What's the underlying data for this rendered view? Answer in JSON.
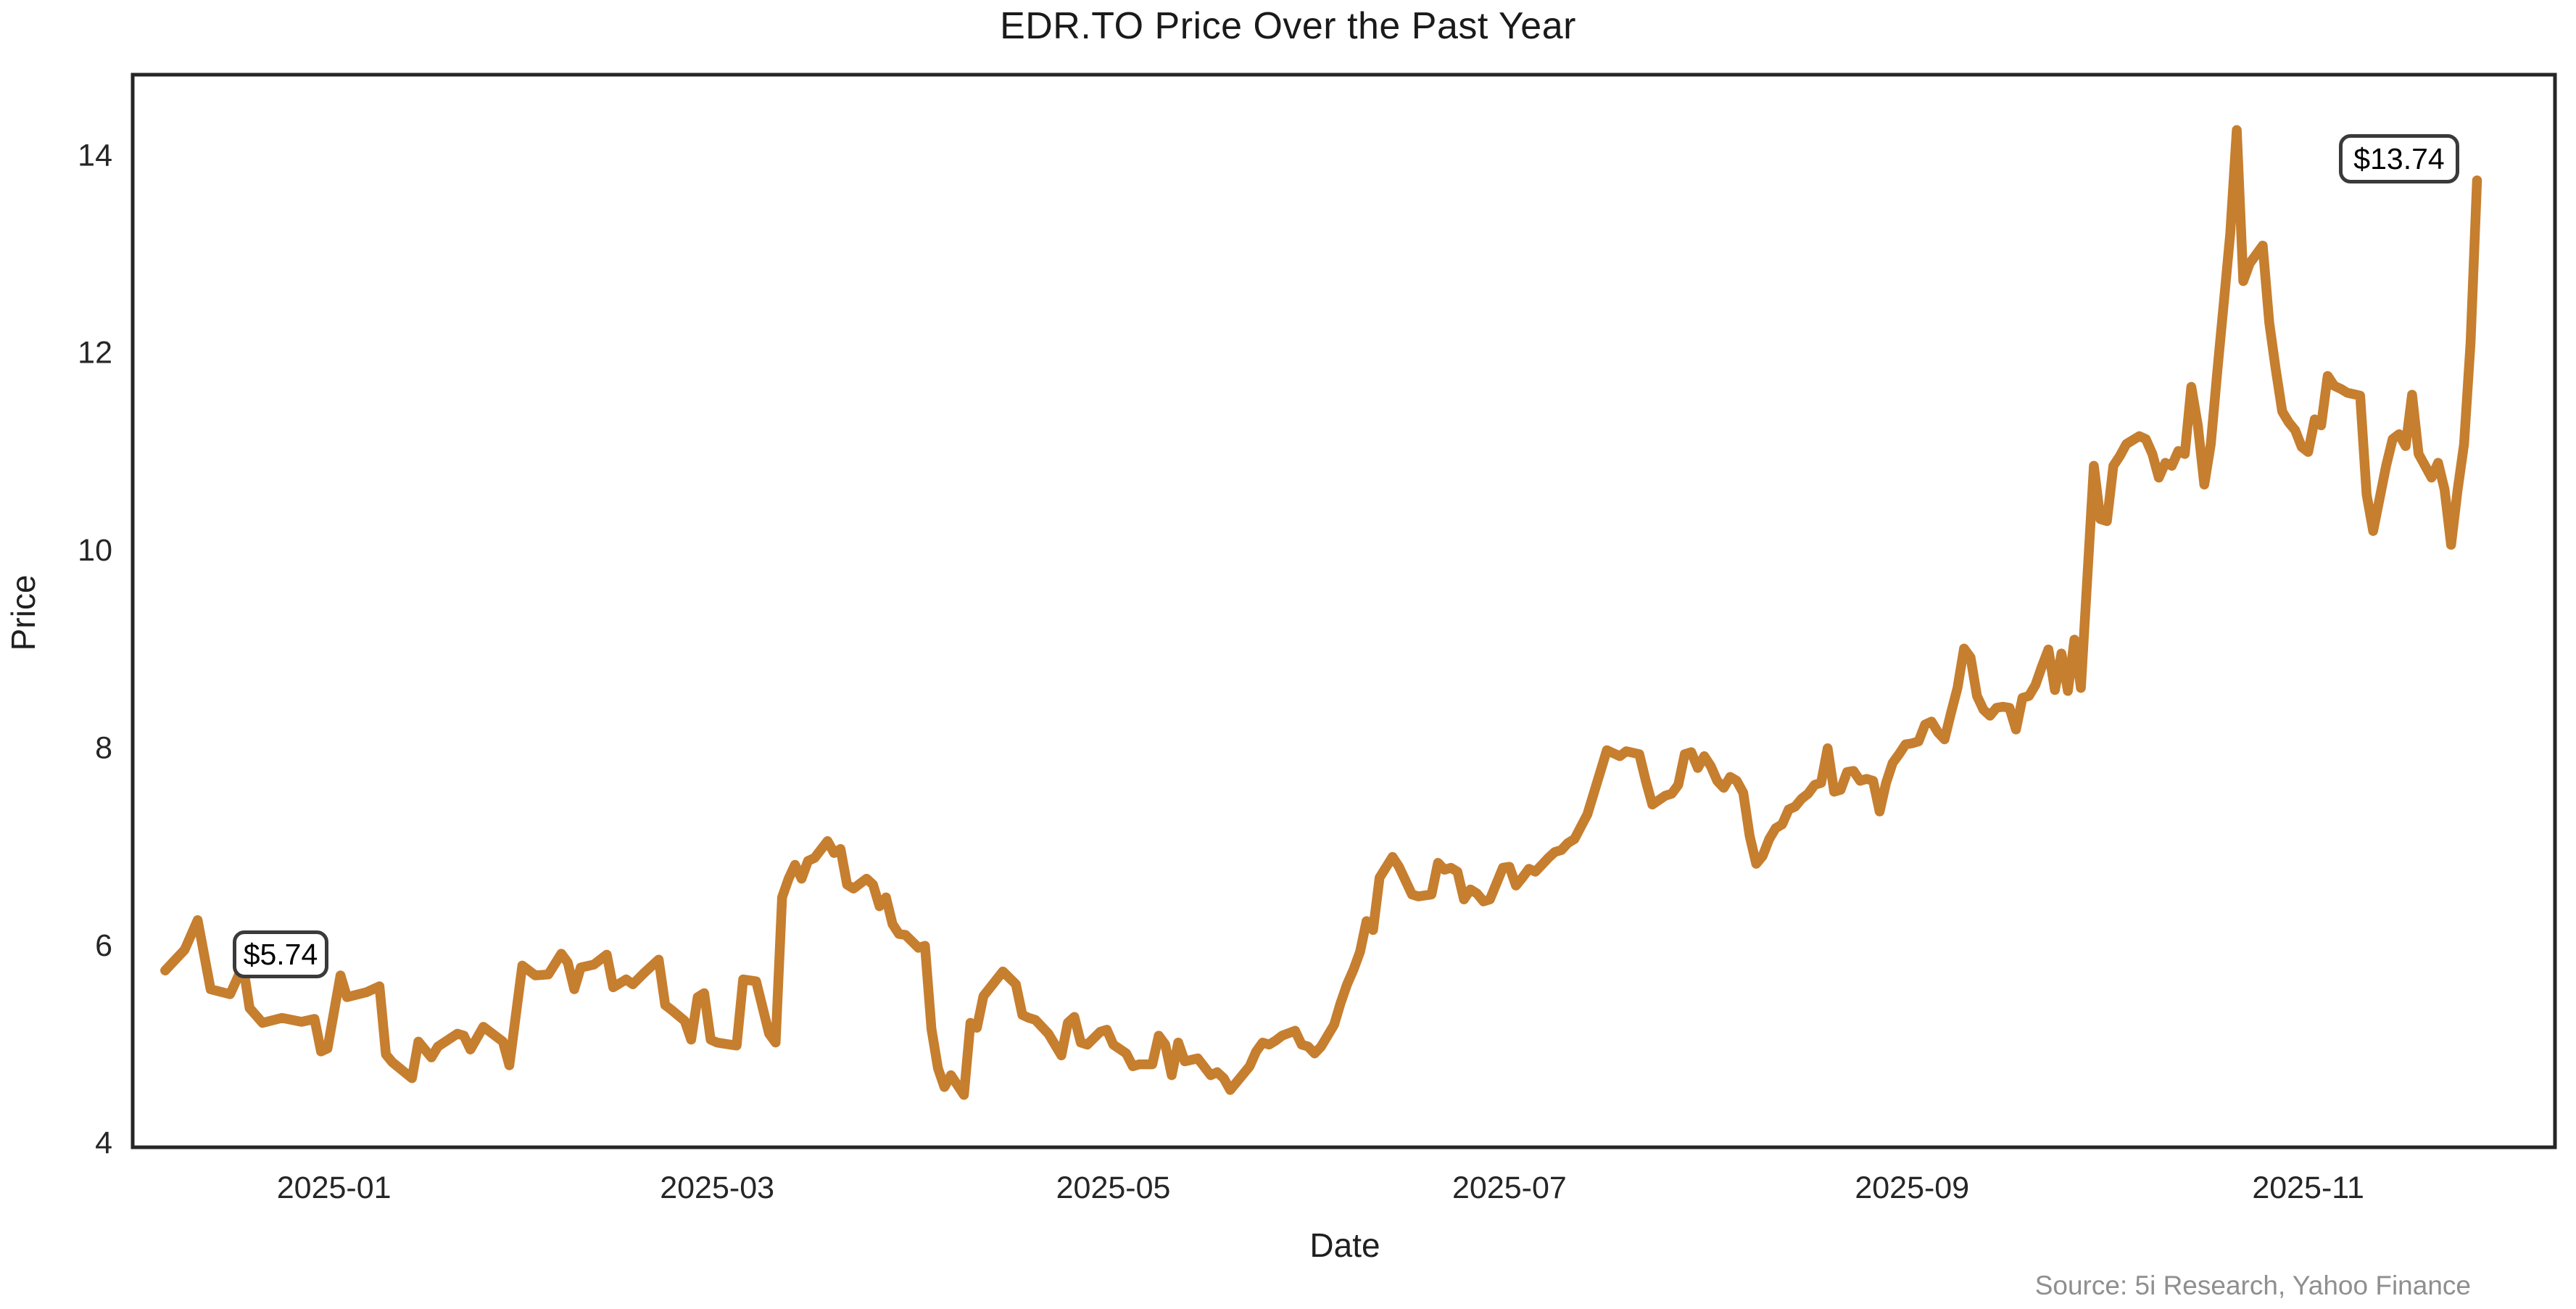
{
  "chart_data": {
    "type": "line",
    "title": "EDR.TO Price Over the Past Year",
    "xlabel": "Date",
    "ylabel": "Price",
    "legend": "none",
    "grid": false,
    "line_color": "#c67e2f",
    "axis_color": "#262626",
    "series_name": "EDR.TO",
    "xlim": [
      "2024-12-01",
      "2025-12-09"
    ],
    "ylim": [
      3.95,
      14.81
    ],
    "yticks": [
      4,
      6,
      8,
      10,
      12,
      14
    ],
    "xticks": [
      {
        "date": "2025-01-01",
        "label": "2025-01"
      },
      {
        "date": "2025-03-01",
        "label": "2025-03"
      },
      {
        "date": "2025-05-01",
        "label": "2025-05"
      },
      {
        "date": "2025-07-01",
        "label": "2025-07"
      },
      {
        "date": "2025-09-01",
        "label": "2025-09"
      },
      {
        "date": "2025-11-01",
        "label": "2025-11"
      }
    ],
    "dates": [
      "2024-12-06",
      "2024-12-09",
      "2024-12-11",
      "2024-12-13",
      "2024-12-16",
      "2024-12-18",
      "2024-12-19",
      "2024-12-21",
      "2024-12-24",
      "2024-12-27",
      "2024-12-29",
      "2024-12-30",
      "2024-12-31",
      "2025-01-02",
      "2025-01-03",
      "2025-01-06",
      "2025-01-08",
      "2025-01-09",
      "2025-01-10",
      "2025-01-13",
      "2025-01-14",
      "2025-01-16",
      "2025-01-17",
      "2025-01-20",
      "2025-01-21",
      "2025-01-22",
      "2025-01-24",
      "2025-01-27",
      "2025-01-28",
      "2025-01-30",
      "2025-01-31",
      "2025-02-01",
      "2025-02-03",
      "2025-02-05",
      "2025-02-06",
      "2025-02-07",
      "2025-02-08",
      "2025-02-10",
      "2025-02-12",
      "2025-02-13",
      "2025-02-15",
      "2025-02-16",
      "2025-02-18",
      "2025-02-20",
      "2025-02-21",
      "2025-02-22",
      "2025-02-24",
      "2025-02-25",
      "2025-02-26",
      "2025-02-27",
      "2025-02-28",
      "2025-03-01",
      "2025-03-03",
      "2025-03-04",
      "2025-03-05",
      "2025-03-07",
      "2025-03-09",
      "2025-03-10",
      "2025-03-11",
      "2025-03-12",
      "2025-03-13",
      "2025-03-14",
      "2025-03-15",
      "2025-03-16",
      "2025-03-18",
      "2025-03-19",
      "2025-03-20",
      "2025-03-21",
      "2025-03-22",
      "2025-03-24",
      "2025-03-25",
      "2025-03-26",
      "2025-03-27",
      "2025-03-28",
      "2025-03-29",
      "2025-03-30",
      "2025-04-01",
      "2025-04-02",
      "2025-04-03",
      "2025-04-04",
      "2025-04-05",
      "2025-04-06",
      "2025-04-08",
      "2025-04-09",
      "2025-04-10",
      "2025-04-11",
      "2025-04-14",
      "2025-04-16",
      "2025-04-17",
      "2025-04-18",
      "2025-04-19",
      "2025-04-21",
      "2025-04-23",
      "2025-04-24",
      "2025-04-25",
      "2025-04-26",
      "2025-04-27",
      "2025-04-29",
      "2025-04-30",
      "2025-05-01",
      "2025-05-03",
      "2025-05-04",
      "2025-05-05",
      "2025-05-07",
      "2025-05-08",
      "2025-05-09",
      "2025-05-10",
      "2025-05-11",
      "2025-05-12",
      "2025-05-14",
      "2025-05-16",
      "2025-05-17",
      "2025-05-18",
      "2025-05-19",
      "2025-05-22",
      "2025-05-23",
      "2025-05-24",
      "2025-05-25",
      "2025-05-26",
      "2025-05-27",
      "2025-05-29",
      "2025-05-30",
      "2025-05-31",
      "2025-06-01",
      "2025-06-02",
      "2025-06-04",
      "2025-06-05",
      "2025-06-06",
      "2025-06-07",
      "2025-06-08",
      "2025-06-09",
      "2025-06-10",
      "2025-06-11",
      "2025-06-13",
      "2025-06-14",
      "2025-06-16",
      "2025-06-17",
      "2025-06-18",
      "2025-06-19",
      "2025-06-20",
      "2025-06-21",
      "2025-06-22",
      "2025-06-23",
      "2025-06-24",
      "2025-06-25",
      "2025-06-26",
      "2025-06-27",
      "2025-06-28",
      "2025-06-30",
      "2025-07-01",
      "2025-07-02",
      "2025-07-03",
      "2025-07-04",
      "2025-07-05",
      "2025-07-06",
      "2025-07-07",
      "2025-07-08",
      "2025-07-09",
      "2025-07-10",
      "2025-07-11",
      "2025-07-13",
      "2025-07-16",
      "2025-07-18",
      "2025-07-19",
      "2025-07-21",
      "2025-07-22",
      "2025-07-23",
      "2025-07-25",
      "2025-07-26",
      "2025-07-27",
      "2025-07-28",
      "2025-07-29",
      "2025-07-30",
      "2025-07-31",
      "2025-08-01",
      "2025-08-02",
      "2025-08-03",
      "2025-08-04",
      "2025-08-05",
      "2025-08-06",
      "2025-08-07",
      "2025-08-08",
      "2025-08-09",
      "2025-08-10",
      "2025-08-11",
      "2025-08-12",
      "2025-08-13",
      "2025-08-14",
      "2025-08-15",
      "2025-08-16",
      "2025-08-17",
      "2025-08-18",
      "2025-08-19",
      "2025-08-20",
      "2025-08-21",
      "2025-08-22",
      "2025-08-23",
      "2025-08-24",
      "2025-08-25",
      "2025-08-26",
      "2025-08-27",
      "2025-08-28",
      "2025-08-29",
      "2025-08-30",
      "2025-08-31",
      "2025-09-01",
      "2025-09-02",
      "2025-09-03",
      "2025-09-04",
      "2025-09-05",
      "2025-09-06",
      "2025-09-07",
      "2025-09-08",
      "2025-09-09",
      "2025-09-10",
      "2025-09-11",
      "2025-09-12",
      "2025-09-13",
      "2025-09-14",
      "2025-09-15",
      "2025-09-16",
      "2025-09-17",
      "2025-09-18",
      "2025-09-19",
      "2025-09-20",
      "2025-09-21",
      "2025-09-22",
      "2025-09-23",
      "2025-09-24",
      "2025-09-25",
      "2025-09-26",
      "2025-09-27",
      "2025-09-29",
      "2025-09-30",
      "2025-10-01",
      "2025-10-02",
      "2025-10-03",
      "2025-10-04",
      "2025-10-06",
      "2025-10-07",
      "2025-10-08",
      "2025-10-09",
      "2025-10-10",
      "2025-10-11",
      "2025-10-12",
      "2025-10-13",
      "2025-10-14",
      "2025-10-15",
      "2025-10-16",
      "2025-10-17",
      "2025-10-18",
      "2025-10-19",
      "2025-10-20",
      "2025-10-21",
      "2025-10-22",
      "2025-10-23",
      "2025-10-25",
      "2025-10-26",
      "2025-10-27",
      "2025-10-28",
      "2025-10-29",
      "2025-10-30",
      "2025-10-31",
      "2025-11-01",
      "2025-11-02",
      "2025-11-03",
      "2025-11-04",
      "2025-11-05",
      "2025-11-06",
      "2025-11-07",
      "2025-11-09",
      "2025-11-10",
      "2025-11-11",
      "2025-11-13",
      "2025-11-14",
      "2025-11-15",
      "2025-11-16",
      "2025-11-17",
      "2025-11-18",
      "2025-11-19",
      "2025-11-20",
      "2025-11-21",
      "2025-11-22",
      "2025-11-23",
      "2025-11-24",
      "2025-11-25",
      "2025-11-26",
      "2025-11-27"
    ],
    "prices": [
      5.74,
      5.95,
      6.25,
      5.55,
      5.5,
      5.79,
      5.36,
      5.21,
      5.26,
      5.22,
      5.25,
      4.92,
      4.95,
      5.69,
      5.47,
      5.52,
      5.58,
      4.89,
      4.81,
      4.65,
      5.02,
      4.86,
      4.97,
      5.1,
      5.08,
      4.94,
      5.17,
      5.02,
      4.78,
      5.79,
      5.74,
      5.69,
      5.7,
      5.91,
      5.82,
      5.55,
      5.77,
      5.8,
      5.9,
      5.57,
      5.65,
      5.6,
      5.73,
      5.85,
      5.39,
      5.34,
      5.23,
      5.04,
      5.47,
      5.51,
      5.04,
      5.01,
      4.99,
      4.98,
      5.65,
      5.63,
      5.1,
      5.01,
      6.48,
      6.67,
      6.81,
      6.67,
      6.85,
      6.88,
      7.05,
      6.93,
      6.97,
      6.61,
      6.57,
      6.67,
      6.61,
      6.39,
      6.48,
      6.21,
      6.11,
      6.1,
      5.97,
      5.99,
      5.15,
      4.75,
      4.56,
      4.68,
      4.48,
      5.21,
      5.16,
      5.48,
      5.73,
      5.6,
      5.29,
      5.26,
      5.24,
      5.1,
      4.88,
      5.21,
      5.27,
      5.01,
      4.99,
      5.12,
      5.14,
      4.99,
      4.9,
      4.77,
      4.79,
      4.79,
      5.08,
      4.99,
      4.68,
      5.01,
      4.82,
      4.85,
      4.68,
      4.71,
      4.65,
      4.53,
      4.77,
      4.92,
      5.01,
      4.99,
      5.03,
      5.08,
      5.13,
      4.99,
      4.97,
      4.9,
      4.97,
      5.19,
      5.41,
      5.6,
      5.75,
      5.93,
      6.24,
      6.15,
      6.68,
      6.89,
      6.79,
      6.51,
      6.49,
      6.5,
      6.51,
      6.83,
      6.76,
      6.78,
      6.74,
      6.46,
      6.56,
      6.52,
      6.44,
      6.46,
      6.78,
      6.79,
      6.6,
      6.68,
      6.77,
      6.74,
      6.81,
      6.88,
      6.94,
      6.96,
      7.03,
      7.07,
      7.32,
      7.97,
      7.91,
      7.96,
      7.93,
      7.66,
      7.42,
      7.51,
      7.53,
      7.62,
      7.93,
      7.95,
      7.79,
      7.91,
      7.81,
      7.66,
      7.59,
      7.7,
      7.66,
      7.54,
      7.1,
      6.82,
      6.9,
      7.07,
      7.18,
      7.22,
      7.37,
      7.4,
      7.48,
      7.53,
      7.62,
      7.64,
      7.99,
      7.55,
      7.57,
      7.75,
      7.76,
      7.66,
      7.68,
      7.66,
      7.35,
      7.64,
      7.84,
      7.93,
      8.03,
      8.04,
      8.06,
      8.23,
      8.26,
      8.15,
      8.08,
      8.35,
      8.6,
      9.0,
      8.91,
      8.52,
      8.38,
      8.32,
      8.4,
      8.41,
      8.4,
      8.18,
      8.5,
      8.52,
      8.63,
      8.82,
      8.99,
      8.58,
      8.95,
      8.57,
      9.09,
      8.6,
      10.85,
      10.31,
      10.29,
      10.85,
      10.95,
      11.07,
      11.15,
      11.12,
      10.97,
      10.73,
      10.88,
      10.85,
      11.0,
      10.97,
      11.65,
      11.26,
      10.66,
      11.07,
      11.8,
      12.5,
      13.2,
      14.25,
      12.72,
      12.9,
      13.08,
      12.3,
      11.83,
      11.4,
      11.29,
      11.21,
      11.04,
      10.99,
      11.32,
      11.26,
      11.76,
      11.66,
      11.63,
      11.59,
      11.56,
      10.56,
      10.19,
      10.85,
      11.12,
      11.17,
      11.05,
      11.57,
      10.97,
      10.85,
      10.73,
      10.88,
      10.61,
      10.05,
      10.6,
      11.07,
      12.1,
      13.74
    ],
    "annotations": {
      "start": {
        "label": "$5.74",
        "value": 5.74,
        "date": "2024-12-06"
      },
      "end": {
        "label": "$13.74",
        "value": 13.74,
        "date": "2025-11-27"
      }
    }
  },
  "source": {
    "text": "Source: 5i Research, Yahoo Finance"
  }
}
